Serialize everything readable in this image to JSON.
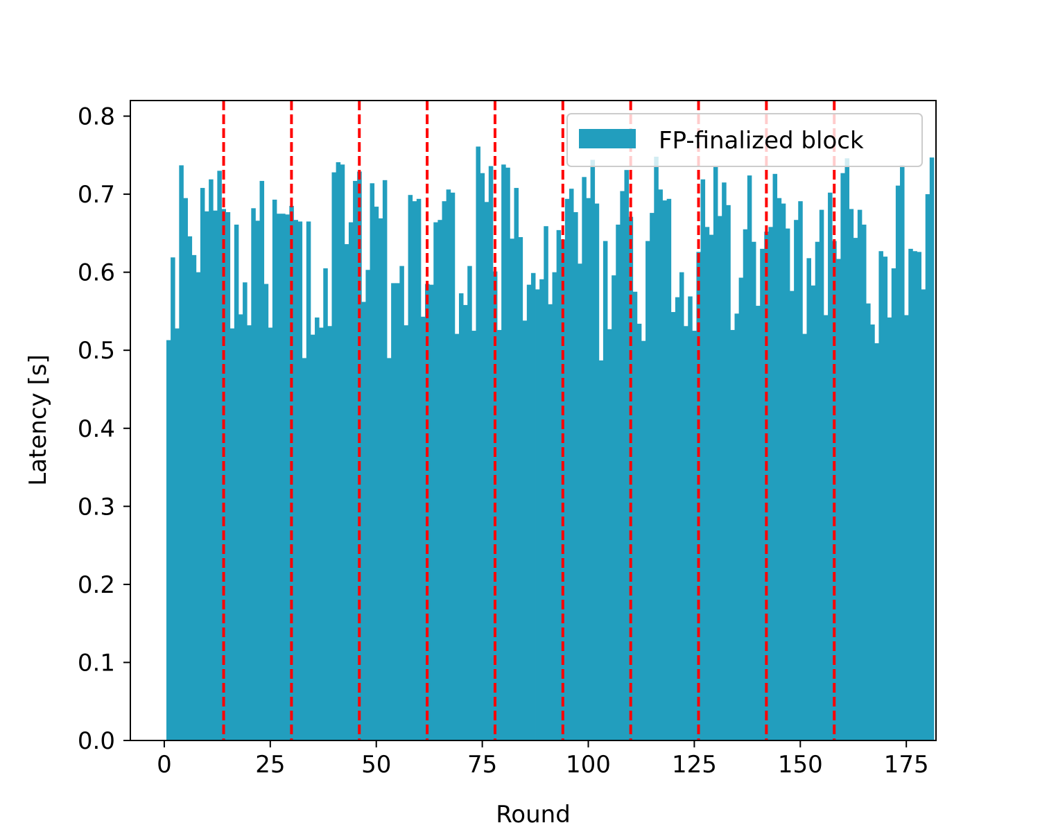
{
  "chart_data": {
    "type": "bar",
    "xlabel": "Round",
    "ylabel": "Latency [s]",
    "xlim": [
      -8,
      182
    ],
    "ylim": [
      0,
      0.82
    ],
    "x_ticks": [
      0,
      25,
      50,
      75,
      100,
      125,
      150,
      175
    ],
    "x_tick_labels": [
      "0",
      "25",
      "50",
      "75",
      "100",
      "125",
      "150",
      "175"
    ],
    "y_ticks": [
      0.0,
      0.1,
      0.2,
      0.3,
      0.4,
      0.5,
      0.6,
      0.7,
      0.8
    ],
    "y_tick_labels": [
      "0.0",
      "0.1",
      "0.2",
      "0.3",
      "0.4",
      "0.5",
      "0.6",
      "0.7",
      "0.8"
    ],
    "grid": false,
    "legend_position": "top-right",
    "vlines": {
      "x": [
        14,
        30,
        46,
        62,
        78,
        94,
        110,
        126,
        142,
        158
      ],
      "color": "#ff0000",
      "style": "dashed"
    },
    "series": [
      {
        "name": "FP-finalized block",
        "color": "#229ebe",
        "x_start": 1,
        "values": [
          0.513,
          0.619,
          0.528,
          0.737,
          0.695,
          0.646,
          0.622,
          0.6,
          0.708,
          0.678,
          0.719,
          0.679,
          0.73,
          0.681,
          0.677,
          0.528,
          0.661,
          0.546,
          0.587,
          0.532,
          0.682,
          0.666,
          0.717,
          0.585,
          0.529,
          0.693,
          0.675,
          0.675,
          0.674,
          0.685,
          0.667,
          0.665,
          0.49,
          0.665,
          0.52,
          0.542,
          0.529,
          0.605,
          0.531,
          0.728,
          0.741,
          0.738,
          0.636,
          0.664,
          0.717,
          0.729,
          0.562,
          0.603,
          0.714,
          0.684,
          0.669,
          0.718,
          0.49,
          0.586,
          0.586,
          0.608,
          0.532,
          0.699,
          0.691,
          0.694,
          0.543,
          0.585,
          0.584,
          0.664,
          0.667,
          0.691,
          0.706,
          0.702,
          0.521,
          0.573,
          0.558,
          0.608,
          0.525,
          0.761,
          0.727,
          0.69,
          0.736,
          0.601,
          0.526,
          0.738,
          0.734,
          0.643,
          0.708,
          0.645,
          0.538,
          0.584,
          0.599,
          0.578,
          0.591,
          0.659,
          0.559,
          0.6,
          0.654,
          0.642,
          0.694,
          0.707,
          0.677,
          0.611,
          0.722,
          0.695,
          0.744,
          0.688,
          0.487,
          0.64,
          0.527,
          0.596,
          0.661,
          0.704,
          0.731,
          0.671,
          0.575,
          0.534,
          0.512,
          0.64,
          0.676,
          0.748,
          0.706,
          0.692,
          0.694,
          0.549,
          0.568,
          0.6,
          0.531,
          0.569,
          0.525,
          0.626,
          0.719,
          0.658,
          0.648,
          0.735,
          0.672,
          0.715,
          0.686,
          0.526,
          0.547,
          0.593,
          0.655,
          0.724,
          0.639,
          0.557,
          0.63,
          0.652,
          0.658,
          0.726,
          0.695,
          0.688,
          0.656,
          0.576,
          0.667,
          0.691,
          0.521,
          0.618,
          0.583,
          0.639,
          0.68,
          0.545,
          0.702,
          0.64,
          0.617,
          0.727,
          0.746,
          0.681,
          0.644,
          0.68,
          0.661,
          0.56,
          0.533,
          0.509,
          0.627,
          0.62,
          0.542,
          0.605,
          0.711,
          0.737,
          0.545,
          0.63,
          0.627,
          0.626,
          0.578,
          0.7,
          0.747
        ]
      }
    ]
  }
}
